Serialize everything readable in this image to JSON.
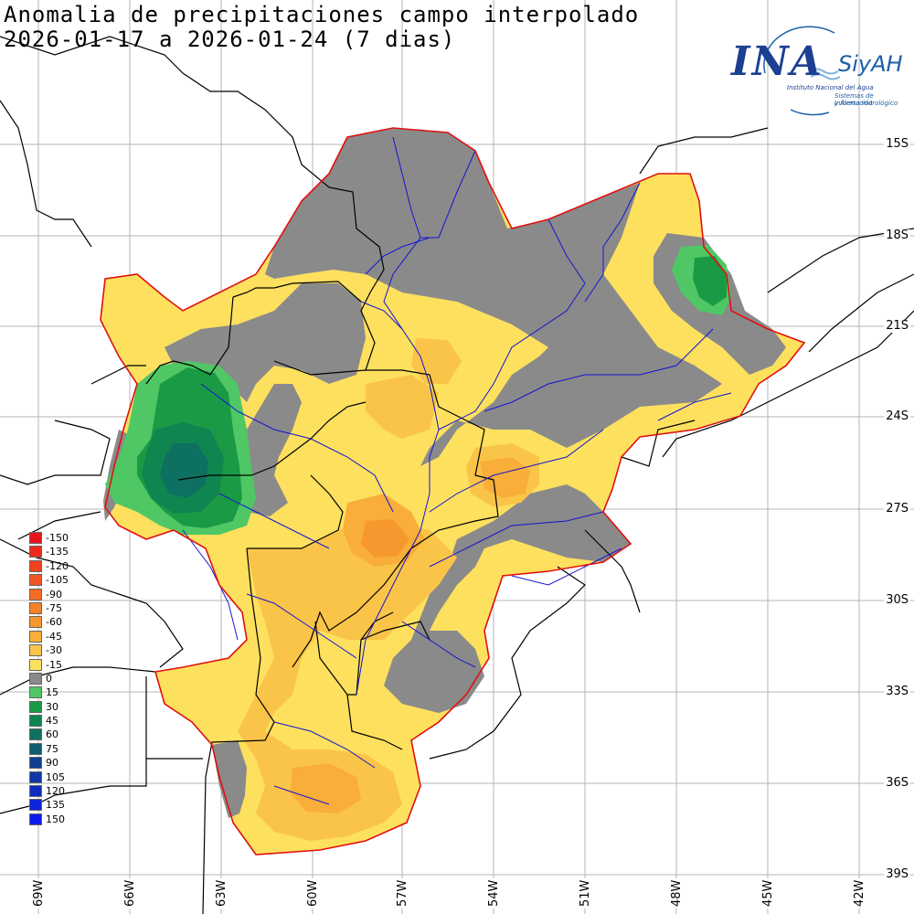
{
  "title": {
    "line1": "Anomalia de precipitaciones campo interpolado",
    "line2": "2026-01-17 a 2026-01-24 (7 dias)"
  },
  "logo": {
    "main": "INA",
    "brand": "SiyAH",
    "subtitle1": "Instituto Nacional del Agua",
    "subtitle2": "Sistemas de Información",
    "subtitle3": "y Alerta Hidrológico",
    "color_main": "#1c3f91",
    "color_brand": "#1c5fa8"
  },
  "latitude_labels": [
    "15S",
    "18S",
    "21S",
    "24S",
    "27S",
    "30S",
    "33S",
    "36S",
    "39S"
  ],
  "longitude_labels": [
    "69W",
    "66W",
    "63W",
    "60W",
    "57W",
    "54W",
    "51W",
    "48W",
    "45W",
    "42W"
  ],
  "legend": [
    {
      "label": "-150",
      "color": "#e8141c"
    },
    {
      "label": "-135",
      "color": "#ec2a1c"
    },
    {
      "label": "-120",
      "color": "#f0401e"
    },
    {
      "label": "-105",
      "color": "#f25622"
    },
    {
      "label": "-90",
      "color": "#f46c24"
    },
    {
      "label": "-75",
      "color": "#f58228"
    },
    {
      "label": "-60",
      "color": "#f7982e"
    },
    {
      "label": "-45",
      "color": "#f8ae38"
    },
    {
      "label": "-30",
      "color": "#fac448"
    },
    {
      "label": "-15",
      "color": "#fde05e"
    },
    {
      "label": "0",
      "color": "#8a8a8a"
    },
    {
      "label": "15",
      "color": "#4fc765"
    },
    {
      "label": "30",
      "color": "#1b9a45"
    },
    {
      "label": "45",
      "color": "#0f8550"
    },
    {
      "label": "60",
      "color": "#0e7060"
    },
    {
      "label": "75",
      "color": "#0f5d6f"
    },
    {
      "label": "90",
      "color": "#103f8e"
    },
    {
      "label": "105",
      "color": "#1036a8"
    },
    {
      "label": "120",
      "color": "#0f2cc0"
    },
    {
      "label": "135",
      "color": "#0e24d8"
    },
    {
      "label": "150",
      "color": "#0c1aec"
    }
  ],
  "colors": {
    "basin_outline": "#e01010",
    "rivers": "#1414d2",
    "borders": "#000000",
    "grid": "#b4b4b4"
  }
}
